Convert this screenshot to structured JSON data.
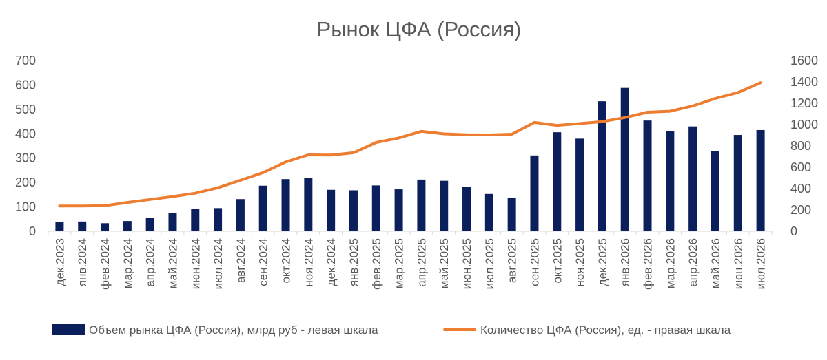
{
  "chart_data": {
    "type": "bar",
    "title": "Рынок ЦФА (Россия)",
    "categories": [
      "дек.2023",
      "янв.2024",
      "фев.2024",
      "мар.2024",
      "апр.2024",
      "май.2024",
      "июн.2024",
      "июл.2024",
      "авг.2024",
      "сен.2024",
      "окт.2024",
      "ноя.2024",
      "дек.2024",
      "янв.2025",
      "фев.2025",
      "мар.2025",
      "апр.2025",
      "май.2025",
      "июн.2025",
      "июл.2025",
      "авг.2025",
      "сен.2025",
      "окт.2025",
      "ноя.2025",
      "дек.2025",
      "янв.2026",
      "фев.2026",
      "мар.2026",
      "апр.2026",
      "май.2026",
      "июн.2026",
      "июл.2026"
    ],
    "series": [
      {
        "name": "Объем рынка ЦФА (Россия), млрд руб - левая шкала",
        "type": "bar",
        "axis": "left",
        "color": "#0b1f5c",
        "values": [
          38,
          40,
          33,
          42,
          55,
          76,
          93,
          95,
          132,
          187,
          214,
          220,
          170,
          168,
          188,
          172,
          212,
          207,
          181,
          153,
          138,
          311,
          406,
          380,
          533,
          588,
          454,
          410,
          430,
          328,
          395,
          415
        ]
      },
      {
        "name": "Количество ЦФА (Россия), ед. - правая шкала",
        "type": "line",
        "axis": "right",
        "color": "#ed7d31",
        "values": [
          237,
          237,
          240,
          270,
          298,
          325,
          357,
          408,
          478,
          550,
          650,
          716,
          715,
          736,
          832,
          875,
          937,
          913,
          905,
          903,
          910,
          1020,
          993,
          1010,
          1028,
          1066,
          1116,
          1125,
          1175,
          1245,
          1300,
          1392
        ]
      }
    ],
    "y_left": {
      "ticks": [
        "0",
        "100",
        "200",
        "300",
        "400",
        "500",
        "600",
        "700"
      ],
      "min": 0,
      "max": 700
    },
    "y_right": {
      "ticks": [
        "0",
        "200",
        "400",
        "600",
        "800",
        "1000",
        "1200",
        "1400",
        "1600"
      ],
      "min": 0,
      "max": 1600
    },
    "grid": false,
    "legend_position": "bottom"
  }
}
